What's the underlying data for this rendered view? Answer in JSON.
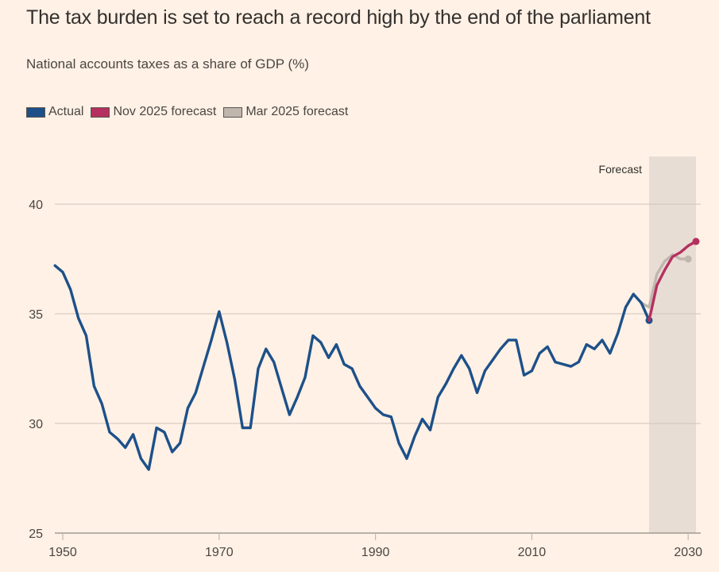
{
  "chart_data": {
    "type": "line",
    "title": "The tax burden is set to reach a record high by the end of the parliament",
    "subtitle": "National accounts taxes as a share of GDP (%)",
    "xlabel": "",
    "ylabel": "",
    "xlim": [
      1949,
      2031
    ],
    "ylim": [
      25,
      42
    ],
    "grid": true,
    "legend_position": "top-left",
    "x_ticks": [
      1950,
      1970,
      1990,
      2010,
      2030
    ],
    "x_tick_labels": [
      "1950",
      "1970",
      "1990",
      "2010",
      "2030"
    ],
    "y_ticks": [
      25,
      30,
      35,
      40
    ],
    "y_tick_labels": [
      "25",
      "30",
      "35",
      "40"
    ],
    "annotations": [
      {
        "type": "shaded-region",
        "label": "Forecast",
        "x_from": 2025,
        "x_to": 2031
      }
    ],
    "series": [
      {
        "name": "Actual",
        "color": "#1d5089",
        "end_marker": true,
        "x": [
          1949,
          1950,
          1951,
          1952,
          1953,
          1954,
          1955,
          1956,
          1957,
          1958,
          1959,
          1960,
          1961,
          1962,
          1963,
          1964,
          1965,
          1966,
          1967,
          1968,
          1969,
          1970,
          1971,
          1972,
          1973,
          1974,
          1975,
          1976,
          1977,
          1978,
          1979,
          1980,
          1981,
          1982,
          1983,
          1984,
          1985,
          1986,
          1987,
          1988,
          1989,
          1990,
          1991,
          1992,
          1993,
          1994,
          1995,
          1996,
          1997,
          1998,
          1999,
          2000,
          2001,
          2002,
          2003,
          2004,
          2005,
          2006,
          2007,
          2008,
          2009,
          2010,
          2011,
          2012,
          2013,
          2014,
          2015,
          2016,
          2017,
          2018,
          2019,
          2020,
          2021,
          2022,
          2023,
          2024,
          2025
        ],
        "values": [
          37.2,
          36.9,
          36.1,
          34.8,
          34.0,
          31.7,
          30.9,
          29.6,
          29.3,
          28.9,
          29.5,
          28.4,
          27.9,
          29.8,
          29.6,
          28.7,
          29.1,
          30.7,
          31.4,
          32.6,
          33.8,
          35.1,
          33.7,
          32.0,
          29.8,
          29.8,
          32.5,
          33.4,
          32.8,
          31.6,
          30.4,
          31.2,
          32.1,
          34.0,
          33.7,
          33.0,
          33.6,
          32.7,
          32.5,
          31.7,
          31.2,
          30.7,
          30.4,
          30.3,
          29.1,
          28.4,
          29.4,
          30.2,
          29.7,
          31.2,
          31.8,
          32.5,
          33.1,
          32.5,
          31.4,
          32.4,
          32.9,
          33.4,
          33.8,
          33.8,
          32.2,
          32.4,
          33.2,
          33.5,
          32.8,
          32.7,
          32.6,
          32.8,
          33.6,
          33.4,
          33.8,
          33.2,
          34.1,
          35.3,
          35.9,
          35.5,
          34.7
        ]
      },
      {
        "name": "Nov 2025 forecast",
        "color": "#b5305f",
        "end_marker": true,
        "x": [
          2025,
          2026,
          2027,
          2028,
          2029,
          2030,
          2031
        ],
        "values": [
          34.7,
          36.3,
          37.0,
          37.6,
          37.8,
          38.1,
          38.3
        ]
      },
      {
        "name": "Mar 2025 forecast",
        "color": "#c0b6ae",
        "end_marker": true,
        "x": [
          2024,
          2025,
          2026,
          2027,
          2028,
          2029,
          2030
        ],
        "values": [
          35.5,
          35.3,
          36.8,
          37.4,
          37.7,
          37.5,
          37.5
        ]
      }
    ]
  },
  "colors": {
    "background": "#fff1e5",
    "forecast_band": "#e8ddd4",
    "gridline": "#cfc4ba",
    "axis": "#8f8983"
  }
}
